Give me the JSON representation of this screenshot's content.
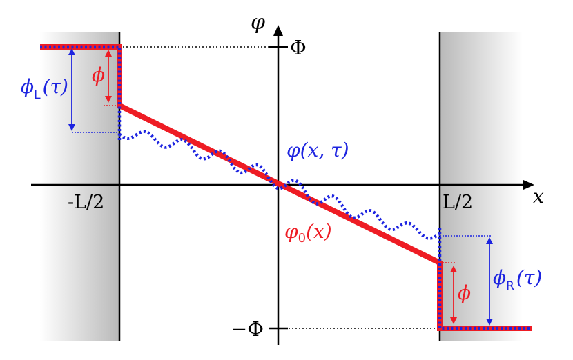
{
  "labels": {
    "y_axis": "φ",
    "x_axis": "x",
    "left_wall": "-L/2",
    "right_wall": "L/2",
    "top_level": "Φ",
    "bottom_level": "−Φ",
    "phi_fluct": "φ(x, τ)",
    "phi_zero": "φ",
    "phi_zero_sub": "0",
    "phi_zero_arg": "(x)",
    "phi_left_top": "ϕ",
    "phi_left_sub": "L",
    "phi_left_arg": "(τ)",
    "phi_right_top": "ϕ",
    "phi_right_sub": "R",
    "phi_right_arg": "(τ)",
    "phi_small_left": "ϕ",
    "phi_small_right": "ϕ"
  },
  "colors": {
    "red": "#ee1c24",
    "blue": "#1d24e0",
    "black": "#000000"
  }
}
